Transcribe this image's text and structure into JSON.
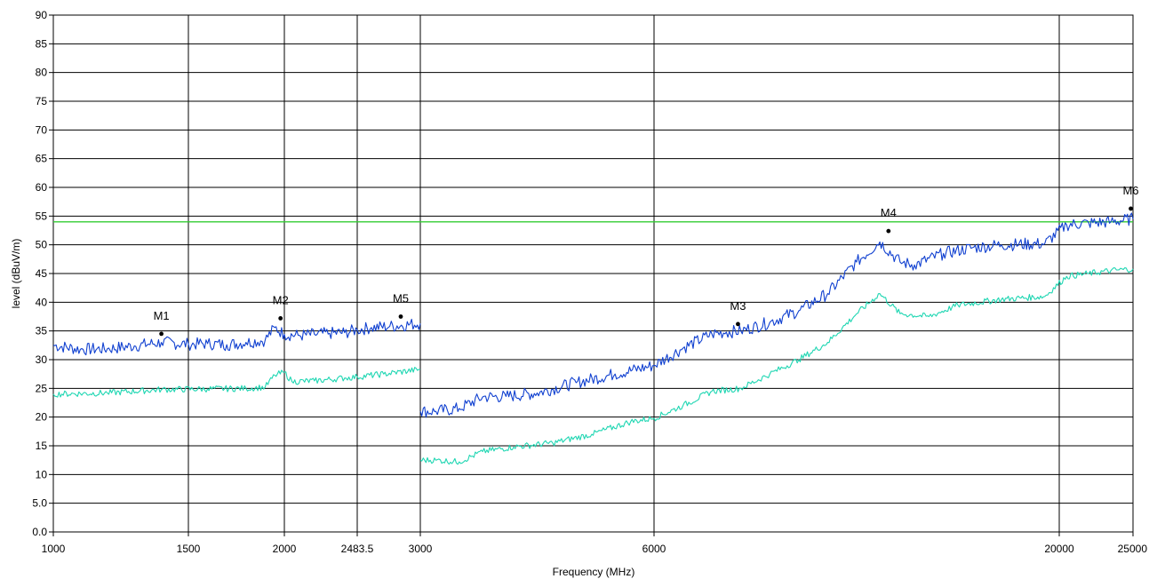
{
  "chart_data": {
    "type": "line",
    "xlabel": "Frequency (MHz)",
    "ylabel": "level (dBuV/m)",
    "ylim": [
      0,
      90
    ],
    "x_ticks": [
      {
        "value": 1000,
        "label": "1000"
      },
      {
        "value": 1500,
        "label": "1500"
      },
      {
        "value": 2000,
        "label": "2000"
      },
      {
        "value": 2483.5,
        "label": "2483.5"
      },
      {
        "value": 3000,
        "label": "3000"
      },
      {
        "value": 6000,
        "label": "6000"
      },
      {
        "value": 20000,
        "label": "20000"
      },
      {
        "value": 25000,
        "label": "25000"
      }
    ],
    "y_ticks": [
      {
        "value": 0,
        "label": "0.0"
      },
      {
        "value": 5,
        "label": "5.0"
      },
      {
        "value": 10,
        "label": "10"
      },
      {
        "value": 15,
        "label": "15"
      },
      {
        "value": 20,
        "label": "20"
      },
      {
        "value": 25,
        "label": "25"
      },
      {
        "value": 30,
        "label": "30"
      },
      {
        "value": 35,
        "label": "35"
      },
      {
        "value": 40,
        "label": "40"
      },
      {
        "value": 45,
        "label": "45"
      },
      {
        "value": 50,
        "label": "50"
      },
      {
        "value": 55,
        "label": "55"
      },
      {
        "value": 60,
        "label": "60"
      },
      {
        "value": 65,
        "label": "65"
      },
      {
        "value": 70,
        "label": "70"
      },
      {
        "value": 75,
        "label": "75"
      },
      {
        "value": 80,
        "label": "80"
      },
      {
        "value": 85,
        "label": "85"
      },
      {
        "value": 90,
        "label": "90"
      }
    ],
    "grid": true,
    "limit_line": {
      "value": 54,
      "color": "#33cc33"
    },
    "series": [
      {
        "color": "#1040d0",
        "points": [
          [
            1000,
            32.5
          ],
          [
            1100,
            31.8
          ],
          [
            1200,
            31.9
          ],
          [
            1300,
            32.4
          ],
          [
            1400,
            33.0
          ],
          [
            1500,
            32.7
          ],
          [
            1600,
            32.8
          ],
          [
            1700,
            32.6
          ],
          [
            1800,
            33.0
          ],
          [
            1900,
            33.4
          ],
          [
            1950,
            35.6
          ],
          [
            2000,
            34.4
          ],
          [
            2100,
            34.2
          ],
          [
            2200,
            34.4
          ],
          [
            2300,
            34.6
          ],
          [
            2400,
            34.7
          ],
          [
            2483.5,
            35.2
          ],
          [
            2600,
            35.6
          ],
          [
            2750,
            35.8
          ],
          [
            3000,
            36.3
          ],
          [
            3001,
            21.0
          ],
          [
            3200,
            21.0
          ],
          [
            3500,
            21.5
          ],
          [
            3800,
            23.5
          ],
          [
            4100,
            23.6
          ],
          [
            4500,
            24.2
          ],
          [
            5000,
            26.0
          ],
          [
            5500,
            27.5
          ],
          [
            6000,
            29.0
          ],
          [
            7000,
            32.0
          ],
          [
            8000,
            34.5
          ],
          [
            8500,
            34.8
          ],
          [
            9000,
            35.0
          ],
          [
            10000,
            36.5
          ],
          [
            11000,
            38.5
          ],
          [
            12000,
            41.5
          ],
          [
            13000,
            47.0
          ],
          [
            13800,
            50.5
          ],
          [
            14500,
            47.0
          ],
          [
            15000,
            46.5
          ],
          [
            16000,
            48.5
          ],
          [
            17000,
            49.5
          ],
          [
            18000,
            50.0
          ],
          [
            19500,
            50.2
          ],
          [
            20500,
            53.5
          ],
          [
            22000,
            53.8
          ],
          [
            23500,
            54.0
          ],
          [
            25000,
            54.5
          ]
        ]
      },
      {
        "color": "#1ed6b2",
        "points": [
          [
            1000,
            24.0
          ],
          [
            1200,
            24.2
          ],
          [
            1400,
            24.8
          ],
          [
            1600,
            24.9
          ],
          [
            1800,
            25.0
          ],
          [
            1900,
            25.2
          ],
          [
            1950,
            27.3
          ],
          [
            2000,
            27.8
          ],
          [
            2050,
            26.2
          ],
          [
            2200,
            26.3
          ],
          [
            2400,
            26.8
          ],
          [
            2483.5,
            27.0
          ],
          [
            2700,
            27.5
          ],
          [
            3000,
            28.3
          ],
          [
            3001,
            12.5
          ],
          [
            3200,
            12.5
          ],
          [
            3500,
            12.2
          ],
          [
            3800,
            14.0
          ],
          [
            4200,
            14.8
          ],
          [
            4700,
            15.5
          ],
          [
            5200,
            17.0
          ],
          [
            5700,
            19.2
          ],
          [
            6000,
            19.8
          ],
          [
            7000,
            22.0
          ],
          [
            8000,
            24.5
          ],
          [
            9000,
            25.0
          ],
          [
            10000,
            27.5
          ],
          [
            11000,
            30.0
          ],
          [
            12000,
            33.0
          ],
          [
            13000,
            38.0
          ],
          [
            13800,
            41.5
          ],
          [
            14500,
            38.0
          ],
          [
            15500,
            37.5
          ],
          [
            16500,
            39.5
          ],
          [
            18000,
            40.5
          ],
          [
            19500,
            41.0
          ],
          [
            20500,
            44.5
          ],
          [
            22000,
            45.0
          ],
          [
            23500,
            45.5
          ],
          [
            25000,
            45.8
          ]
        ]
      }
    ],
    "markers": [
      {
        "label": "M1",
        "x": 1400,
        "y": 34.5
      },
      {
        "label": "M2",
        "x": 1980,
        "y": 37.2
      },
      {
        "label": "M5",
        "x": 2840,
        "y": 37.5
      },
      {
        "label": "M3",
        "x": 8900,
        "y": 36.2
      },
      {
        "label": "M4",
        "x": 14100,
        "y": 52.4
      },
      {
        "label": "M6",
        "x": 24850,
        "y": 56.3
      }
    ]
  }
}
